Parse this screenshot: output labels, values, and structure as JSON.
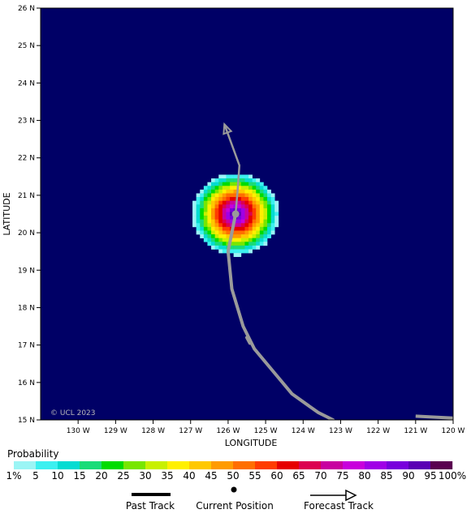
{
  "map": {
    "background_color": "#000066",
    "copyright": "© UCL 2023",
    "xlabel": "LONGITUDE",
    "ylabel": "LATITUDE",
    "lon_range": [
      -131,
      -120
    ],
    "lat_range": [
      15,
      26
    ],
    "x_ticks": [
      {
        "value": -130,
        "label": "130 W"
      },
      {
        "value": -129,
        "label": "129 W"
      },
      {
        "value": -128,
        "label": "128 W"
      },
      {
        "value": -127,
        "label": "127 W"
      },
      {
        "value": -126,
        "label": "126 W"
      },
      {
        "value": -125,
        "label": "125 W"
      },
      {
        "value": -124,
        "label": "124 W"
      },
      {
        "value": -123,
        "label": "123 W"
      },
      {
        "value": -122,
        "label": "122 W"
      },
      {
        "value": -121,
        "label": "121 W"
      },
      {
        "value": -120,
        "label": "120 W"
      }
    ],
    "y_ticks": [
      {
        "value": 15,
        "label": "15 N"
      },
      {
        "value": 16,
        "label": "16 N"
      },
      {
        "value": 17,
        "label": "17 N"
      },
      {
        "value": 18,
        "label": "18 N"
      },
      {
        "value": 19,
        "label": "19 N"
      },
      {
        "value": 20,
        "label": "20 N"
      },
      {
        "value": 21,
        "label": "21 N"
      },
      {
        "value": 22,
        "label": "22 N"
      },
      {
        "value": 23,
        "label": "23 N"
      },
      {
        "value": 24,
        "label": "24 N"
      },
      {
        "value": 25,
        "label": "25 N"
      },
      {
        "value": 26,
        "label": "26 N"
      }
    ],
    "current_position": {
      "lon": -125.8,
      "lat": 20.5
    },
    "probability_field": {
      "center_lon": -125.8,
      "center_lat": 20.5,
      "max_radius_deg": 1.15,
      "peak_percent": 100
    },
    "past_track": [
      {
        "lon": -125.8,
        "lat": 20.5
      },
      {
        "lon": -126.0,
        "lat": 19.5
      },
      {
        "lon": -125.9,
        "lat": 18.5
      },
      {
        "lon": -125.6,
        "lat": 17.5
      },
      {
        "lon": -125.3,
        "lat": 16.9
      },
      {
        "lon": -124.8,
        "lat": 16.3
      },
      {
        "lon": -124.3,
        "lat": 15.7
      },
      {
        "lon": -123.6,
        "lat": 15.2
      },
      {
        "lon": -123.2,
        "lat": 15.0
      }
    ],
    "past_track_marker": {
      "lon": -125.5,
      "lat": 17.2,
      "tip_lon": -125.42,
      "tip_lat": 17.05
    },
    "past_track_extra": [
      {
        "lon": -121.0,
        "lat": 15.1
      },
      {
        "lon": -120.0,
        "lat": 15.05
      }
    ],
    "forecast_track": [
      {
        "lon": -125.8,
        "lat": 20.5
      },
      {
        "lon": -125.75,
        "lat": 21.1
      },
      {
        "lon": -125.7,
        "lat": 21.8
      },
      {
        "lon": -126.1,
        "lat": 22.9
      }
    ],
    "track_color": "#9a9a9a"
  },
  "legend": {
    "title": "Probability",
    "colors": [
      "#9bf5f5",
      "#3cf0f0",
      "#05dcd2",
      "#19dc78",
      "#00dc00",
      "#78e600",
      "#c8f000",
      "#fff000",
      "#ffc800",
      "#ff9b00",
      "#ff6e00",
      "#ff3c00",
      "#e60000",
      "#dc0050",
      "#c800a0",
      "#c800dc",
      "#a000e6",
      "#7800dc",
      "#5a00b4",
      "#5a0050"
    ],
    "labels": [
      "1%",
      "5",
      "10",
      "15",
      "20",
      "25",
      "30",
      "35",
      "40",
      "45",
      "50",
      "55",
      "60",
      "65",
      "70",
      "75",
      "80",
      "85",
      "90",
      "95",
      "100%"
    ],
    "past_track_label": "Past Track",
    "current_position_label": "Current Position",
    "forecast_track_label": "Forecast Track"
  }
}
